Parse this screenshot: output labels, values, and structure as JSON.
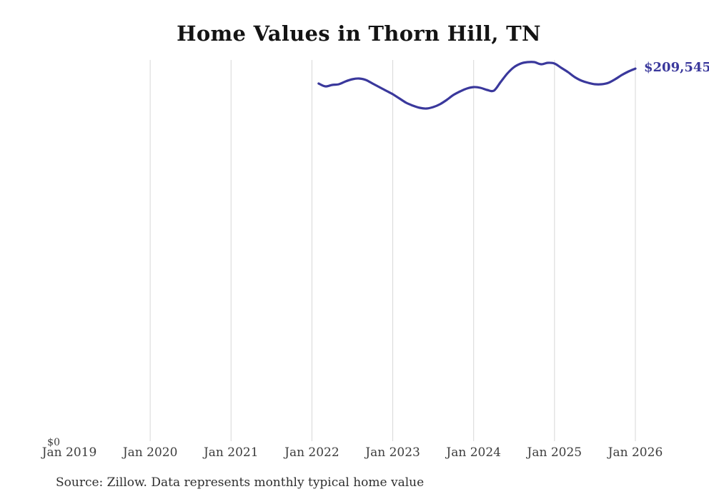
{
  "title": "Home Values in Thorn Hill, TN",
  "source_note": "Source: Zillow. Data represents monthly typical home value",
  "end_label": "$209,545",
  "y_axis": {
    "zero_label": "$0"
  },
  "x_axis": {
    "tick_labels": [
      "Jan 2019",
      "Jan 2020",
      "Jan 2021",
      "Jan 2022",
      "Jan 2023",
      "Jan 2024",
      "Jan 2025",
      "Jan 2026"
    ],
    "gridline_years": [
      2020,
      2021,
      2022,
      2023,
      2024,
      2025,
      2026
    ]
  },
  "colors": {
    "line": "#3a389c",
    "end_label": "#3a389c",
    "grid": "#d7d7d7",
    "axis_text": "#3d3d3d",
    "title_text": "#141414",
    "source_text": "#2f2f2f",
    "background": "#ffffff"
  },
  "chart_data": {
    "type": "line",
    "title": "Home Values in Thorn Hill, TN",
    "xlabel": "",
    "ylabel": "",
    "x_tick_labels": [
      "Jan 2019",
      "Jan 2020",
      "Jan 2021",
      "Jan 2022",
      "Jan 2023",
      "Jan 2024",
      "Jan 2025",
      "Jan 2026"
    ],
    "x_range": [
      "2019-01",
      "2026-10"
    ],
    "ylim": [
      0,
      214400
    ],
    "grid": "vertical-only",
    "legend": "none",
    "series_name": "Typical home value",
    "end_label": "$209,545",
    "x": [
      "2022-02",
      "2022-03",
      "2022-04",
      "2022-05",
      "2022-06",
      "2022-07",
      "2022-08",
      "2022-09",
      "2022-10",
      "2022-11",
      "2022-12",
      "2023-01",
      "2023-02",
      "2023-03",
      "2023-04",
      "2023-05",
      "2023-06",
      "2023-07",
      "2023-08",
      "2023-09",
      "2023-10",
      "2023-11",
      "2023-12",
      "2024-01",
      "2024-02",
      "2024-03",
      "2024-04",
      "2024-05",
      "2024-06",
      "2024-07",
      "2024-08",
      "2024-09",
      "2024-10",
      "2024-11",
      "2024-12",
      "2025-01",
      "2025-02",
      "2025-03",
      "2025-04",
      "2025-05",
      "2025-06",
      "2025-07",
      "2025-08",
      "2025-09",
      "2025-10",
      "2025-11",
      "2025-12",
      "2026-01"
    ],
    "values": [
      201200,
      199600,
      200400,
      200800,
      202400,
      203600,
      204000,
      203200,
      201200,
      199200,
      197200,
      195200,
      192800,
      190400,
      188800,
      187600,
      187200,
      188000,
      189600,
      192000,
      194800,
      196800,
      198400,
      199200,
      198800,
      197600,
      197200,
      202000,
      206800,
      210400,
      212400,
      213200,
      213200,
      212000,
      212800,
      212400,
      210000,
      207600,
      204800,
      202800,
      201600,
      200800,
      200800,
      201600,
      203600,
      206000,
      208000,
      209545
    ]
  }
}
